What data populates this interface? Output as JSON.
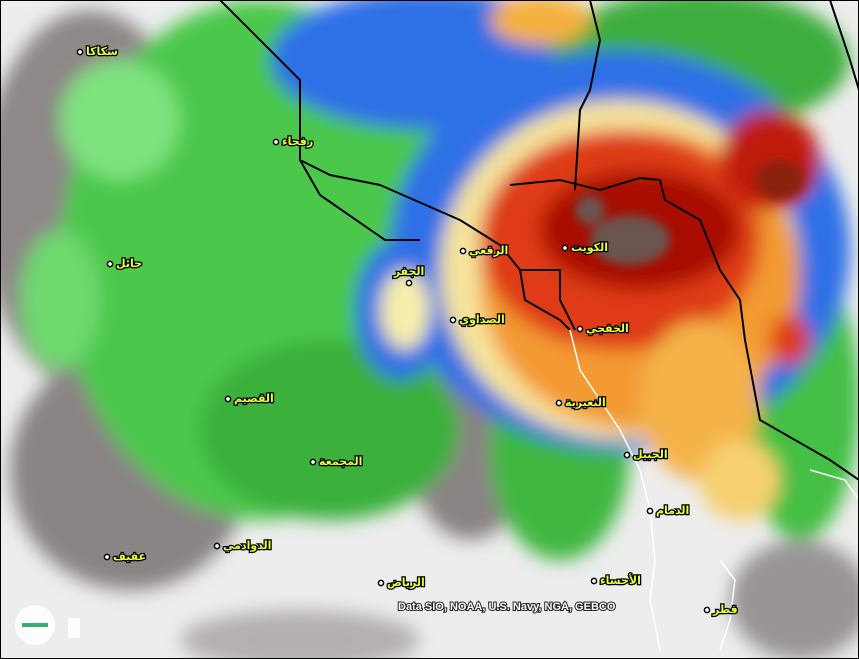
{
  "places": [
    "سكاكا",
    "رفحاء",
    "حائل",
    "الرقعي",
    "الكويت",
    "الجفر",
    "الصداوي",
    "الخفجي",
    "القصيم",
    "النعيرية",
    "الجبيل",
    "المجمعة",
    "الدمام",
    "الدوادمي",
    "عفيف",
    "الرياض",
    "الأحساء",
    "قطر"
  ],
  "attribution": "Data SIO, NOAA, U.S. Navy, NGA, GEBCO"
}
